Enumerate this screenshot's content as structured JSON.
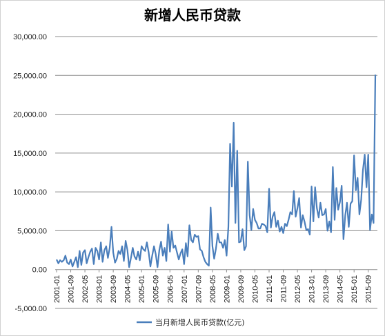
{
  "chart_data": {
    "type": "line",
    "title": "新增人民币贷款",
    "xlabel": "",
    "ylabel": "",
    "ylim": [
      -5000,
      30000
    ],
    "yticks": [
      -5000,
      0,
      5000,
      10000,
      15000,
      20000,
      25000,
      30000
    ],
    "ytick_labels": [
      "-5,000.00",
      "0.00",
      "5,000.00",
      "10,000.00",
      "15,000.00",
      "20,000.00",
      "25,000.00",
      "30,000.00"
    ],
    "xtick_labels": [
      "2001-01",
      "2001-09",
      "2002-05",
      "2003-01",
      "2003-09",
      "2004-05",
      "2005-01",
      "2005-09",
      "2006-05",
      "2007-01",
      "2007-09",
      "2008-05",
      "2009-01",
      "2009-09",
      "2010-05",
      "2011-01",
      "2011-09",
      "2012-05",
      "2013-01",
      "2013-09",
      "2014-05",
      "2015-01",
      "2015-09"
    ],
    "x_start": "2001-01",
    "grid": true,
    "legend_position": "bottom",
    "series": [
      {
        "name": "当月新增人民币贷款(亿元)",
        "color": "#4a7ebb",
        "values": [
          1300,
          800,
          1200,
          1000,
          1200,
          1800,
          900,
          700,
          1300,
          400,
          1000,
          1600,
          300,
          2400,
          600,
          2200,
          2500,
          800,
          1600,
          2300,
          2700,
          700,
          2800,
          2400,
          1300,
          3500,
          1000,
          2500,
          3000,
          1500,
          2800,
          5500,
          2200,
          900,
          1400,
          2400,
          2000,
          3000,
          1100,
          3700,
          2500,
          300,
          1500,
          2800,
          1700,
          1300,
          2300,
          1200,
          3000,
          2600,
          2400,
          3500,
          2200,
          400,
          1800,
          3000,
          2000,
          300,
          2500,
          3600,
          1800,
          2800,
          1100,
          5800,
          2300,
          4900,
          2800,
          3100,
          2200,
          1300,
          2100,
          2600,
          700,
          3400,
          1700,
          5700,
          3800,
          3500,
          4500,
          4200,
          4300,
          2600,
          2400,
          1600,
          1000,
          700,
          500,
          8000,
          3000,
          1400,
          2700,
          4600,
          3500,
          3500,
          2800,
          3800,
          1800,
          5500,
          16200,
          10700,
          18900,
          6000,
          15300,
          3500,
          3600,
          5200,
          2500,
          3000,
          13900,
          7000,
          5100,
          7800,
          6400,
          6000,
          5300,
          5300,
          5900,
          5800,
          5600,
          4800,
          10400,
          5400,
          6800,
          7400,
          5500,
          6300,
          4900,
          5500,
          4700,
          5900,
          5600,
          6400,
          7400,
          7100,
          10100,
          6800,
          7900,
          9200,
          5400,
          7000,
          6200,
          5100,
          5200,
          4500,
          10700,
          6200,
          10600,
          7900,
          6700,
          8600,
          7000,
          7100,
          7800,
          5000,
          6200,
          4800,
          13200,
          6400,
          10500,
          7700,
          8700,
          10800,
          3900,
          7000,
          8600,
          5500,
          8500,
          8800,
          14700,
          10200,
          11800,
          7100,
          9000,
          12800,
          14800,
          10600,
          14800,
          5100,
          7100,
          6000,
          25100
        ]
      }
    ]
  }
}
